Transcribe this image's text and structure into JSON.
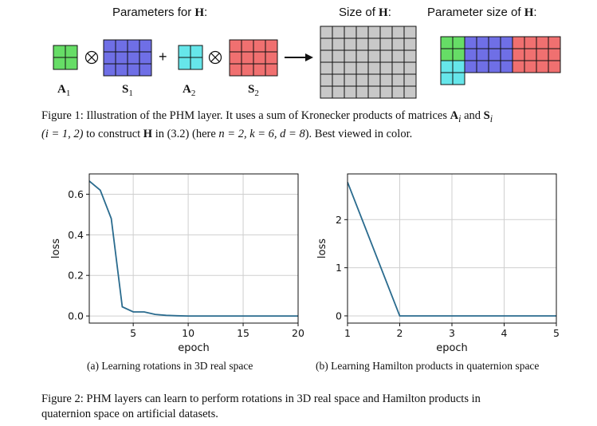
{
  "figure1": {
    "headers": {
      "params_prefix": "Parameters for ",
      "params_symbol": "H",
      "params_suffix": ":",
      "size_prefix": "Size of ",
      "size_symbol": "H",
      "size_suffix": ":",
      "param_size_prefix": "Parameter size of ",
      "param_size_symbol": "H",
      "param_size_suffix": ":"
    },
    "matrices": [
      {
        "name": "A",
        "sub": "1",
        "rows": 2,
        "cols": 2,
        "color": "#66dd66"
      },
      {
        "name": "S",
        "sub": "1",
        "rows": 3,
        "cols": 4,
        "color": "#6f6fe6"
      },
      {
        "name": "A",
        "sub": "2",
        "rows": 2,
        "cols": 2,
        "color": "#66e6ea"
      },
      {
        "name": "S",
        "sub": "2",
        "rows": 3,
        "cols": 4,
        "color": "#f07070"
      }
    ],
    "operators": {
      "kron": "⊗",
      "plus": "+"
    },
    "full_grid": {
      "rows": 6,
      "cols": 8,
      "color": "#c8c8c8"
    },
    "caption": {
      "label": "Figure 1:",
      "line1_text": "Illustration of the PHM layer. It uses a sum of Kronecker products of matrices ",
      "line1_A": "A",
      "line1_i1": "i",
      "line1_and": " and ",
      "line1_S": "S",
      "line1_i2": "i",
      "line2_paren": "(i = 1, 2)",
      "line2_mid": " to construct ",
      "line2_H": "H",
      "line2_rest": " in (3.2) (here ",
      "line2_params": "n = 2, k = 6, d = 8",
      "line2_end": "). Best viewed in color."
    }
  },
  "chart_data": [
    {
      "type": "line",
      "xlabel": "epoch",
      "ylabel": "loss",
      "xlim": [
        1,
        20
      ],
      "ylim": [
        -0.035,
        0.7
      ],
      "xticks": [
        5,
        10,
        15,
        20
      ],
      "yticks": [
        0.0,
        0.2,
        0.4,
        0.6
      ],
      "ytick_labels": [
        "0.0",
        "0.2",
        "0.4",
        "0.6"
      ],
      "xtick_labels": [
        "5",
        "10",
        "15",
        "20"
      ],
      "grid": true,
      "line_color": "#2a6b8e",
      "x": [
        1,
        2,
        3,
        4,
        5,
        6,
        7,
        8,
        9,
        10,
        11,
        12,
        13,
        14,
        15,
        16,
        17,
        18,
        19,
        20
      ],
      "y": [
        0.665,
        0.62,
        0.48,
        0.045,
        0.02,
        0.02,
        0.008,
        0.003,
        0.001,
        0.0,
        0.0,
        0.0,
        0.0,
        0.0,
        0.0,
        0.0,
        0.0,
        0.0,
        0.0,
        0.0
      ],
      "caption": "(a) Learning rotations in 3D real space"
    },
    {
      "type": "line",
      "xlabel": "epoch",
      "ylabel": "loss",
      "xlim": [
        1,
        5
      ],
      "ylim": [
        -0.15,
        2.95
      ],
      "xticks": [
        1,
        2,
        3,
        4,
        5
      ],
      "yticks": [
        0,
        1,
        2
      ],
      "ytick_labels": [
        "0",
        "1",
        "2"
      ],
      "xtick_labels": [
        "1",
        "2",
        "3",
        "4",
        "5"
      ],
      "grid": true,
      "line_color": "#2a6b8e",
      "x": [
        1,
        2,
        3,
        4,
        5
      ],
      "y": [
        2.78,
        0.0,
        0.0,
        0.0,
        0.0
      ],
      "caption": "(b) Learning Hamilton products in quaternion space"
    }
  ],
  "figure2": {
    "label": "Figure 2:",
    "text_line1": "PHM layers can learn to perform rotations in 3D real space and Hamilton products in",
    "text_line2": "quaternion space on artificial datasets."
  }
}
